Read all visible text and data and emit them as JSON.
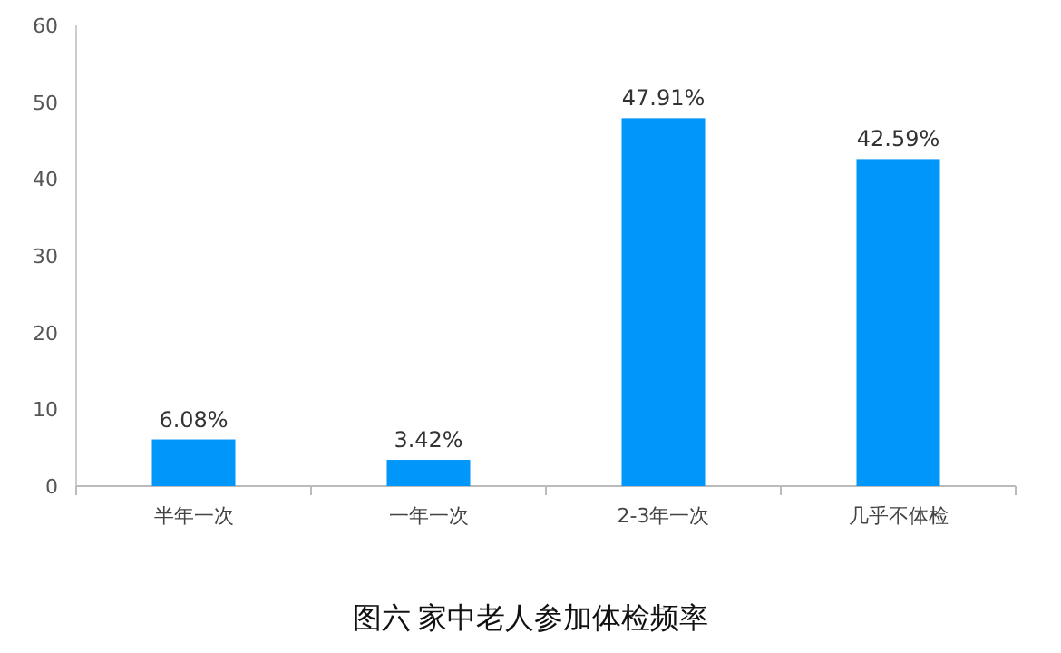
{
  "chart_data": {
    "type": "bar",
    "title": "图六  家中老人参加体检频率",
    "categories": [
      "半年一次",
      "一年一次",
      "2-3年一次",
      "几乎不体检"
    ],
    "values": [
      6.08,
      3.42,
      47.91,
      42.59
    ],
    "value_labels": [
      "6.08%",
      "3.42%",
      "47.91%",
      "42.59%"
    ],
    "color": "#0096fa",
    "ylim": [
      0,
      60
    ],
    "yticks": [
      0,
      10,
      20,
      30,
      40,
      50,
      60
    ]
  }
}
